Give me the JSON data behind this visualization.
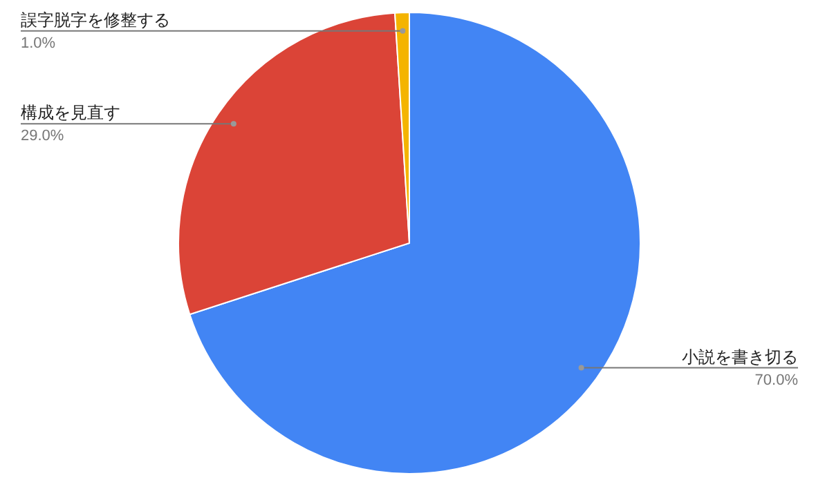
{
  "chart_data": {
    "type": "pie",
    "categories": [
      "小説を書き切る",
      "構成を見直す",
      "誤字脱字を修整する"
    ],
    "values": [
      70,
      29,
      1
    ],
    "colors": [
      "#4285f4",
      "#db4437",
      "#f4b400"
    ],
    "value_labels": [
      "70.0%",
      "29.0%",
      "1.0%"
    ]
  }
}
